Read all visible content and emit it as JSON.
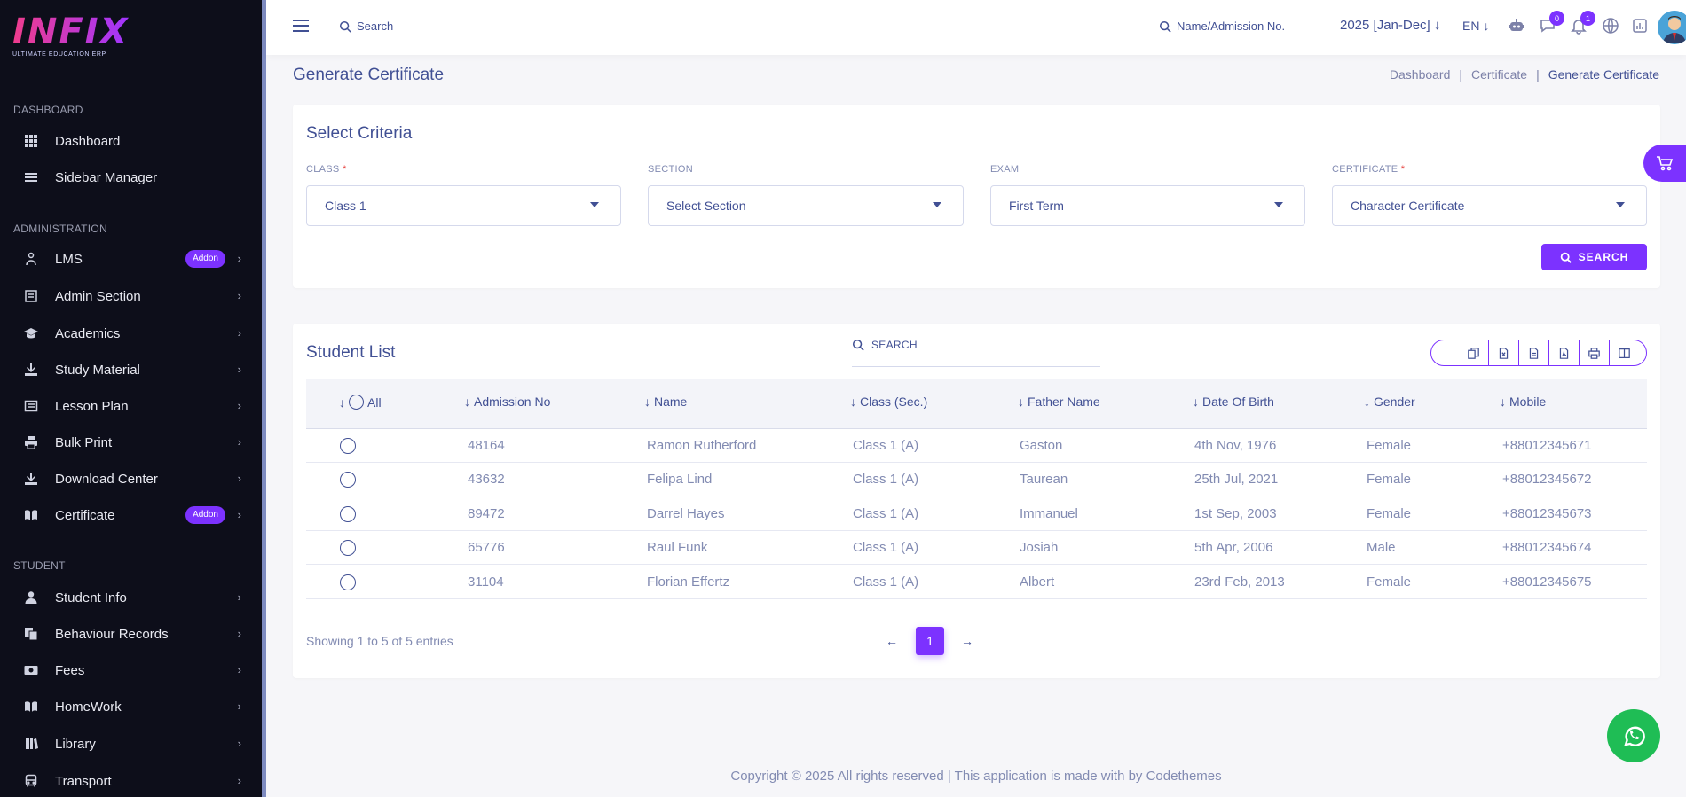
{
  "brand": {
    "logo_text": "INFIX",
    "tagline": "ULTIMATE EDUCATION ERP"
  },
  "sidebar": {
    "sections": [
      {
        "title": "DASHBOARD"
      },
      {
        "title": "ADMINISTRATION"
      },
      {
        "title": "STUDENT"
      }
    ],
    "items": [
      {
        "label": "Dashboard",
        "icon": "grid-icon"
      },
      {
        "label": "Sidebar Manager",
        "icon": "menu-lines-icon"
      },
      {
        "label": "LMS",
        "icon": "lms-icon",
        "badge": "Addon"
      },
      {
        "label": "Admin Section",
        "icon": "admin-icon"
      },
      {
        "label": "Academics",
        "icon": "graduation-cap-icon"
      },
      {
        "label": "Study Material",
        "icon": "download-icon"
      },
      {
        "label": "Lesson Plan",
        "icon": "list-icon"
      },
      {
        "label": "Bulk Print",
        "icon": "printer-icon"
      },
      {
        "label": "Download Center",
        "icon": "download-icon"
      },
      {
        "label": "Certificate",
        "icon": "book-icon",
        "badge": "Addon"
      },
      {
        "label": "Student Info",
        "icon": "user-icon"
      },
      {
        "label": "Behaviour Records",
        "icon": "records-icon"
      },
      {
        "label": "Fees",
        "icon": "money-icon"
      },
      {
        "label": "HomeWork",
        "icon": "book-icon"
      },
      {
        "label": "Library",
        "icon": "library-icon"
      },
      {
        "label": "Transport",
        "icon": "bus-icon"
      }
    ]
  },
  "header": {
    "search_placeholder": "Search",
    "student_search_placeholder": "Name/Admission No.",
    "session": "2025 [Jan-Dec]",
    "language": "EN",
    "chat_badge": "0",
    "notification_badge": "1"
  },
  "page": {
    "title": "Generate Certificate",
    "breadcrumbs": [
      "Dashboard",
      "|",
      "Certificate",
      "|",
      "Generate Certificate"
    ]
  },
  "criteria": {
    "title": "Select Criteria",
    "class_label": "CLASS",
    "class_value": "Class 1",
    "section_label": "SECTION",
    "section_value": "Select Section",
    "exam_label": "EXAM",
    "exam_value": "First Term",
    "certificate_label": "CERTIFICATE",
    "certificate_value": "Character Certificate",
    "required_mark": "*",
    "search_button": "SEARCH"
  },
  "students": {
    "title": "Student List",
    "search_placeholder": "SEARCH",
    "columns": [
      "All",
      "Admission No",
      "Name",
      "Class (Sec.)",
      "Father Name",
      "Date Of Birth",
      "Gender",
      "Mobile"
    ],
    "rows": [
      {
        "admission": "48164",
        "name": "Ramon Rutherford",
        "class": "Class 1 (A)",
        "father": "Gaston",
        "dob": "4th Nov, 1976",
        "gender": "Female",
        "mobile": "+88012345671"
      },
      {
        "admission": "43632",
        "name": "Felipa Lind",
        "class": "Class 1 (A)",
        "father": "Taurean",
        "dob": "25th Jul, 2021",
        "gender": "Female",
        "mobile": "+88012345672"
      },
      {
        "admission": "89472",
        "name": "Darrel Hayes",
        "class": "Class 1 (A)",
        "father": "Immanuel",
        "dob": "1st Sep, 2003",
        "gender": "Female",
        "mobile": "+88012345673"
      },
      {
        "admission": "65776",
        "name": "Raul Funk",
        "class": "Class 1 (A)",
        "father": "Josiah",
        "dob": "5th Apr, 2006",
        "gender": "Male",
        "mobile": "+88012345674"
      },
      {
        "admission": "31104",
        "name": "Florian Effertz",
        "class": "Class 1 (A)",
        "father": "Albert",
        "dob": "23rd Feb, 2013",
        "gender": "Female",
        "mobile": "+88012345675"
      }
    ],
    "showing": "Showing 1 to 5 of 5 entries",
    "current_page": "1"
  },
  "footer": {
    "text": "Copyright © 2025 All rights reserved | This application is made with by Codethemes"
  },
  "colors": {
    "accent": "#7c32ff",
    "sidebar_bg": "#0d0e1a",
    "text": "#415094",
    "whatsapp": "#1fbd55"
  }
}
